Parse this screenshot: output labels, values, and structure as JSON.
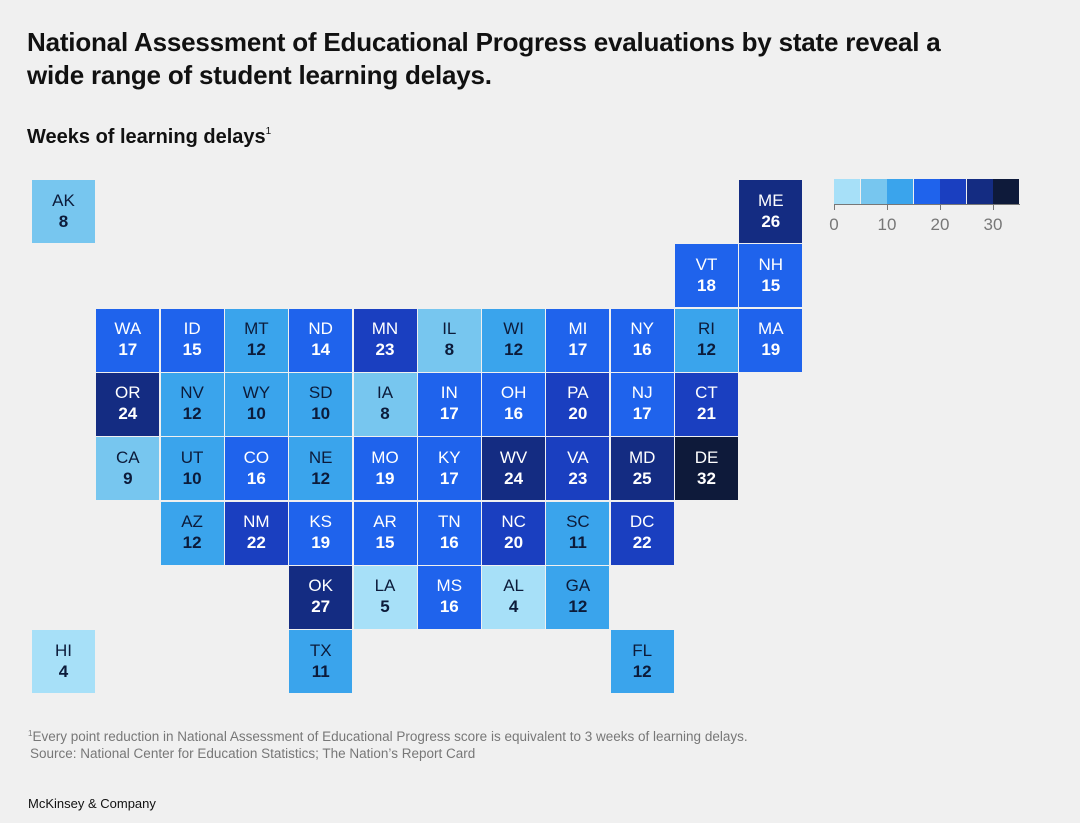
{
  "title": "National Assessment of Educational Progress evaluations by state reveal a wide range of student learning delays.",
  "subtitle": "Weeks of learning delays",
  "subtitle_marker": "1",
  "chart_data": {
    "type": "heatmap",
    "title": "Weeks of learning delays",
    "value_unit": "weeks",
    "color_scale": {
      "ticks": [
        0,
        10,
        20,
        30
      ],
      "tick_labels": [
        "0",
        "10",
        "20",
        "30"
      ],
      "colors": [
        "#a7e0f8",
        "#77c6ef",
        "#3aa4ec",
        "#1f63ec",
        "#1a3fc0",
        "#142c82",
        "#0e1a3a"
      ]
    },
    "states": [
      {
        "abbr": "AK",
        "value": 8,
        "row": 0,
        "col": 0
      },
      {
        "abbr": "ME",
        "value": 26,
        "row": 0,
        "col": 11
      },
      {
        "abbr": "VT",
        "value": 18,
        "row": 1,
        "col": 10
      },
      {
        "abbr": "NH",
        "value": 15,
        "row": 1,
        "col": 11
      },
      {
        "abbr": "WA",
        "value": 17,
        "row": 2,
        "col": 1
      },
      {
        "abbr": "ID",
        "value": 15,
        "row": 2,
        "col": 2
      },
      {
        "abbr": "MT",
        "value": 12,
        "row": 2,
        "col": 3
      },
      {
        "abbr": "ND",
        "value": 14,
        "row": 2,
        "col": 4
      },
      {
        "abbr": "MN",
        "value": 23,
        "row": 2,
        "col": 5
      },
      {
        "abbr": "IL",
        "value": 8,
        "row": 2,
        "col": 6
      },
      {
        "abbr": "WI",
        "value": 12,
        "row": 2,
        "col": 7
      },
      {
        "abbr": "MI",
        "value": 17,
        "row": 2,
        "col": 8
      },
      {
        "abbr": "NY",
        "value": 16,
        "row": 2,
        "col": 9
      },
      {
        "abbr": "RI",
        "value": 12,
        "row": 2,
        "col": 10
      },
      {
        "abbr": "MA",
        "value": 19,
        "row": 2,
        "col": 11
      },
      {
        "abbr": "OR",
        "value": 24,
        "row": 3,
        "col": 1
      },
      {
        "abbr": "NV",
        "value": 12,
        "row": 3,
        "col": 2
      },
      {
        "abbr": "WY",
        "value": 10,
        "row": 3,
        "col": 3
      },
      {
        "abbr": "SD",
        "value": 10,
        "row": 3,
        "col": 4
      },
      {
        "abbr": "IA",
        "value": 8,
        "row": 3,
        "col": 5
      },
      {
        "abbr": "IN",
        "value": 17,
        "row": 3,
        "col": 6
      },
      {
        "abbr": "OH",
        "value": 16,
        "row": 3,
        "col": 7
      },
      {
        "abbr": "PA",
        "value": 20,
        "row": 3,
        "col": 8
      },
      {
        "abbr": "NJ",
        "value": 17,
        "row": 3,
        "col": 9
      },
      {
        "abbr": "CT",
        "value": 21,
        "row": 3,
        "col": 10
      },
      {
        "abbr": "CA",
        "value": 9,
        "row": 4,
        "col": 1
      },
      {
        "abbr": "UT",
        "value": 10,
        "row": 4,
        "col": 2
      },
      {
        "abbr": "CO",
        "value": 16,
        "row": 4,
        "col": 3
      },
      {
        "abbr": "NE",
        "value": 12,
        "row": 4,
        "col": 4
      },
      {
        "abbr": "MO",
        "value": 19,
        "row": 4,
        "col": 5
      },
      {
        "abbr": "KY",
        "value": 17,
        "row": 4,
        "col": 6
      },
      {
        "abbr": "WV",
        "value": 24,
        "row": 4,
        "col": 7
      },
      {
        "abbr": "VA",
        "value": 23,
        "row": 4,
        "col": 8
      },
      {
        "abbr": "MD",
        "value": 25,
        "row": 4,
        "col": 9
      },
      {
        "abbr": "DE",
        "value": 32,
        "row": 4,
        "col": 10
      },
      {
        "abbr": "AZ",
        "value": 12,
        "row": 5,
        "col": 2
      },
      {
        "abbr": "NM",
        "value": 22,
        "row": 5,
        "col": 3
      },
      {
        "abbr": "KS",
        "value": 19,
        "row": 5,
        "col": 4
      },
      {
        "abbr": "AR",
        "value": 15,
        "row": 5,
        "col": 5
      },
      {
        "abbr": "TN",
        "value": 16,
        "row": 5,
        "col": 6
      },
      {
        "abbr": "NC",
        "value": 20,
        "row": 5,
        "col": 7
      },
      {
        "abbr": "SC",
        "value": 11,
        "row": 5,
        "col": 8
      },
      {
        "abbr": "DC",
        "value": 22,
        "row": 5,
        "col": 9
      },
      {
        "abbr": "OK",
        "value": 27,
        "row": 6,
        "col": 4
      },
      {
        "abbr": "LA",
        "value": 5,
        "row": 6,
        "col": 5
      },
      {
        "abbr": "MS",
        "value": 16,
        "row": 6,
        "col": 6
      },
      {
        "abbr": "AL",
        "value": 4,
        "row": 6,
        "col": 7
      },
      {
        "abbr": "GA",
        "value": 12,
        "row": 6,
        "col": 8
      },
      {
        "abbr": "HI",
        "value": 4,
        "row": 7,
        "col": 0
      },
      {
        "abbr": "TX",
        "value": 11,
        "row": 7,
        "col": 4
      },
      {
        "abbr": "FL",
        "value": 12,
        "row": 7,
        "col": 9
      }
    ]
  },
  "footnote": {
    "marker": "1",
    "text": "Every point reduction in National Assessment of Educational Progress score is equivalent to 3 weeks of learning delays.",
    "source": "Source: National Center for Education Statistics; The Nation’s Report Card"
  },
  "brand": "McKinsey & Company"
}
